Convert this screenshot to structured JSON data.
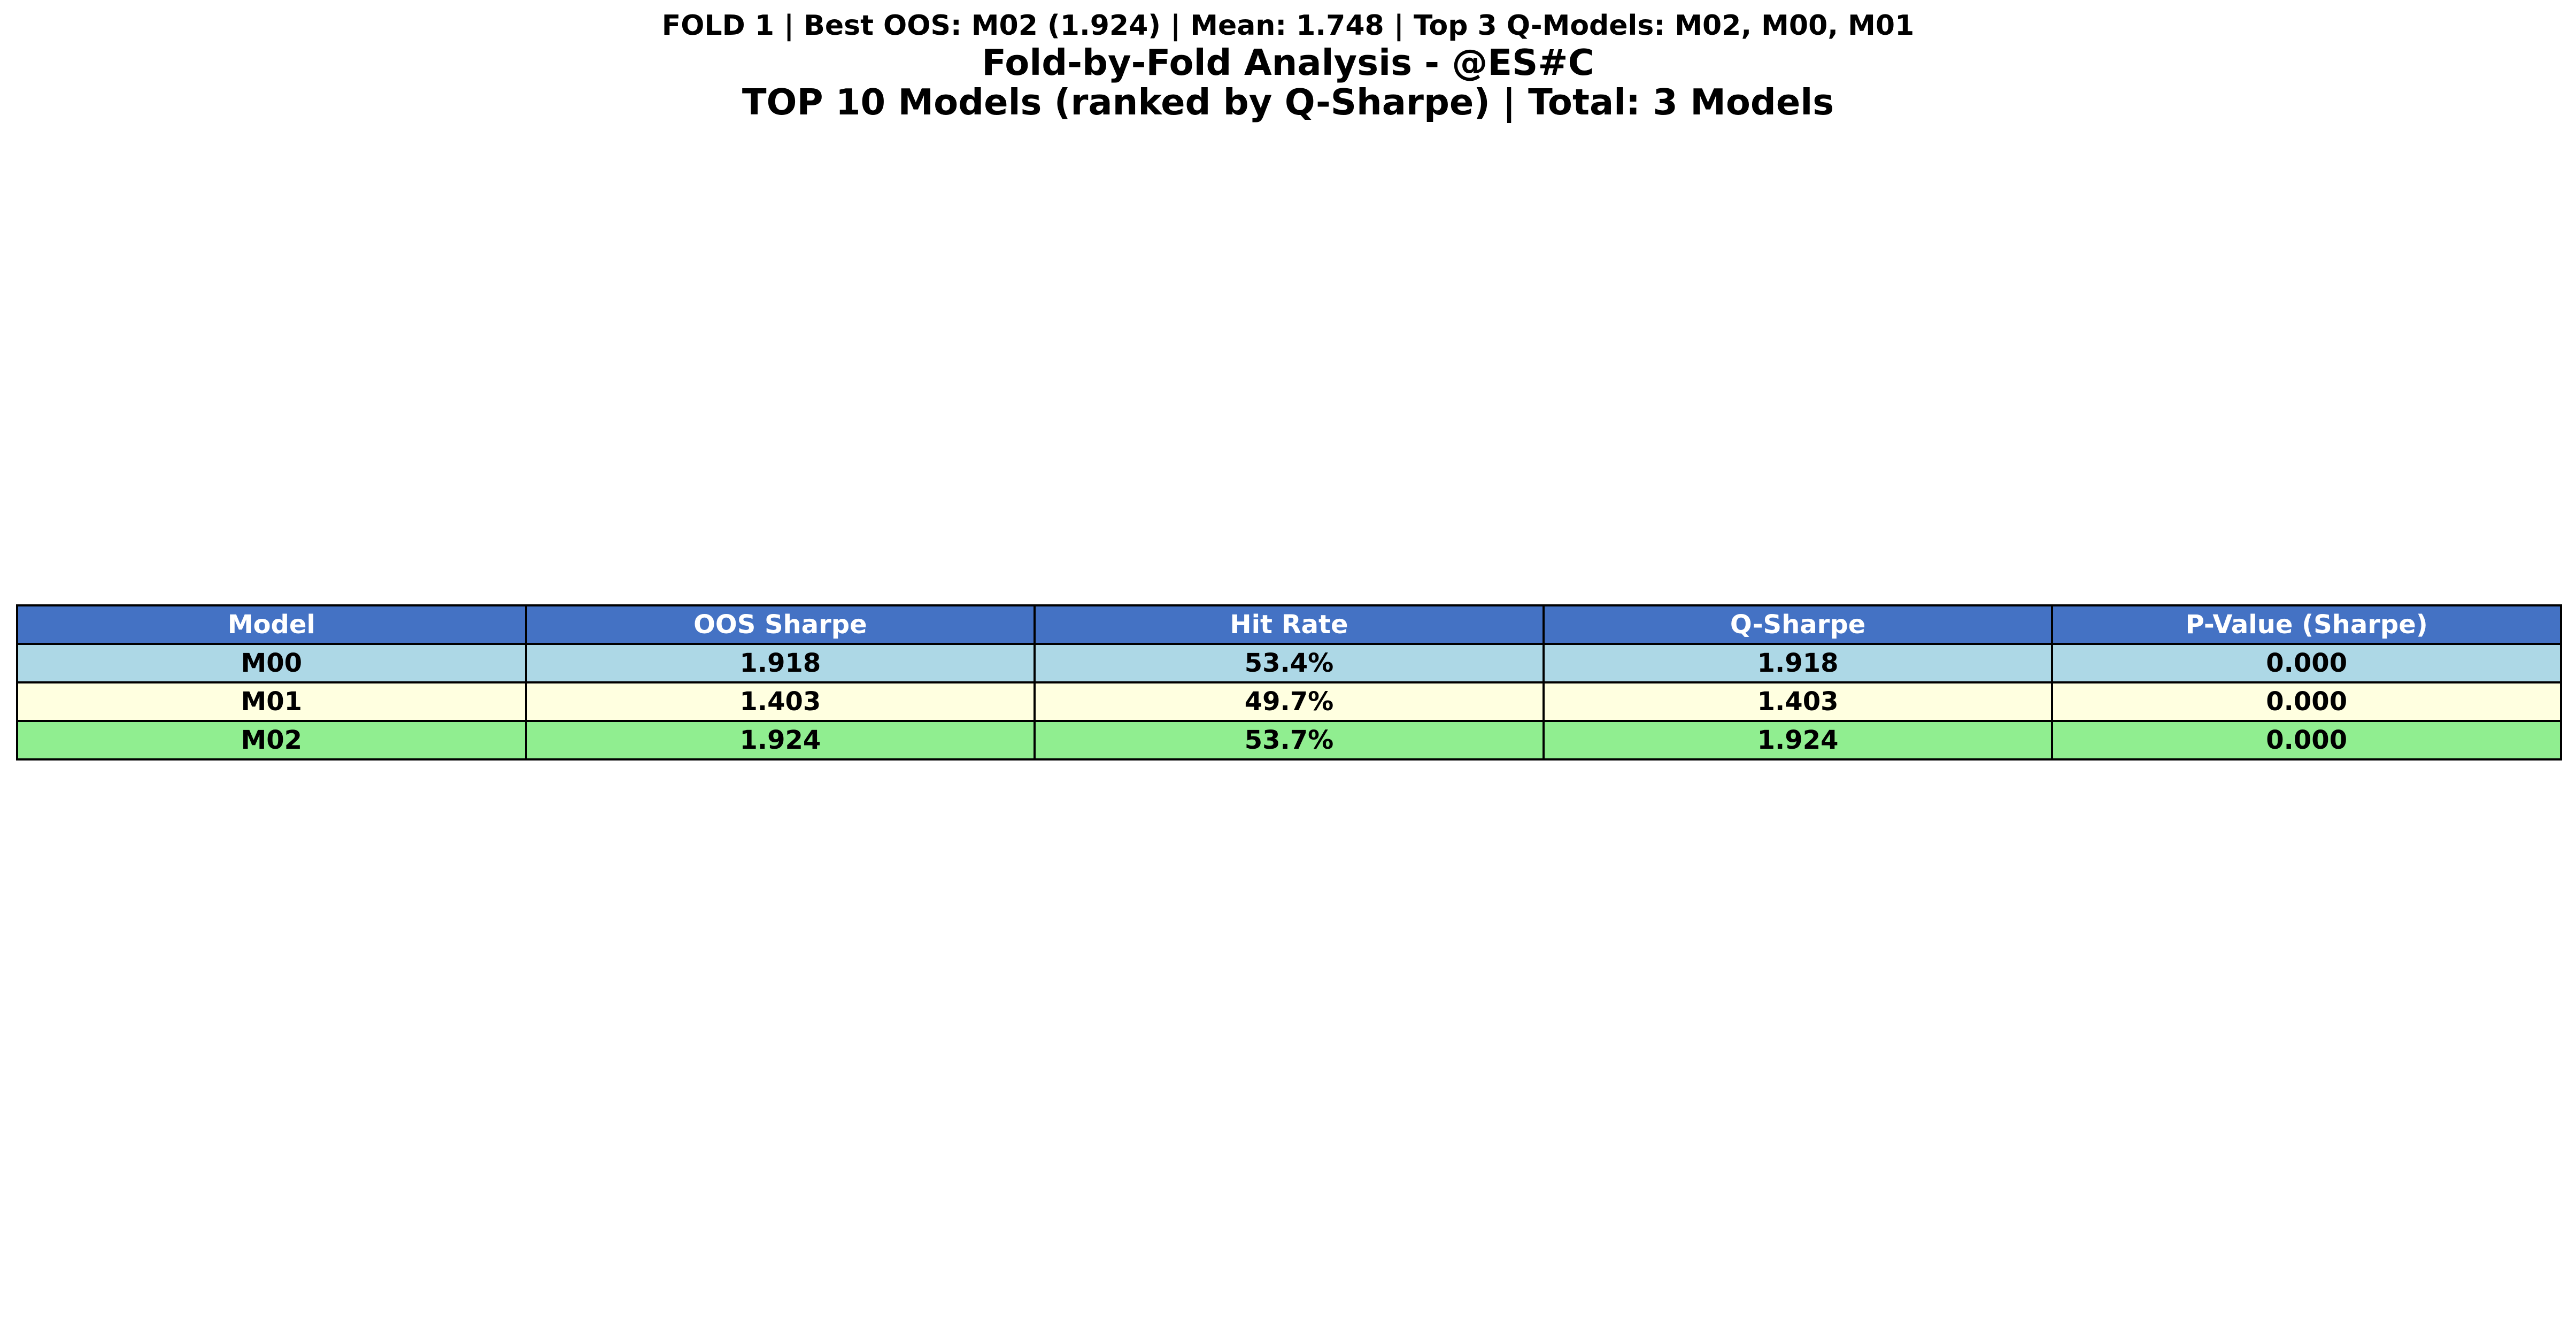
{
  "titles": {
    "summary": "FOLD 1 | Best OOS: M02 (1.924) | Mean: 1.748 | Top 3 Q-Models: M02, M00, M01",
    "main": "Fold-by-Fold Analysis - @ES#C",
    "sub": "TOP 10 Models (ranked by Q-Sharpe) | Total: 3 Models"
  },
  "chart_data": {
    "type": "table",
    "columns": [
      "Model",
      "OOS Sharpe",
      "Hit Rate",
      "Q-Sharpe",
      "P-Value (Sharpe)"
    ],
    "rows": [
      [
        "M00",
        "1.918",
        "53.4%",
        "1.918",
        "0.000"
      ],
      [
        "M01",
        "1.403",
        "49.7%",
        "1.403",
        "0.000"
      ],
      [
        "M02",
        "1.924",
        "53.7%",
        "1.924",
        "0.000"
      ]
    ]
  },
  "colors": {
    "header_bg": "#4472c4",
    "header_text": "#ffffff",
    "row_bg": [
      "#add8e6",
      "#ffffe0",
      "#90ee90"
    ],
    "border": "#000000"
  }
}
